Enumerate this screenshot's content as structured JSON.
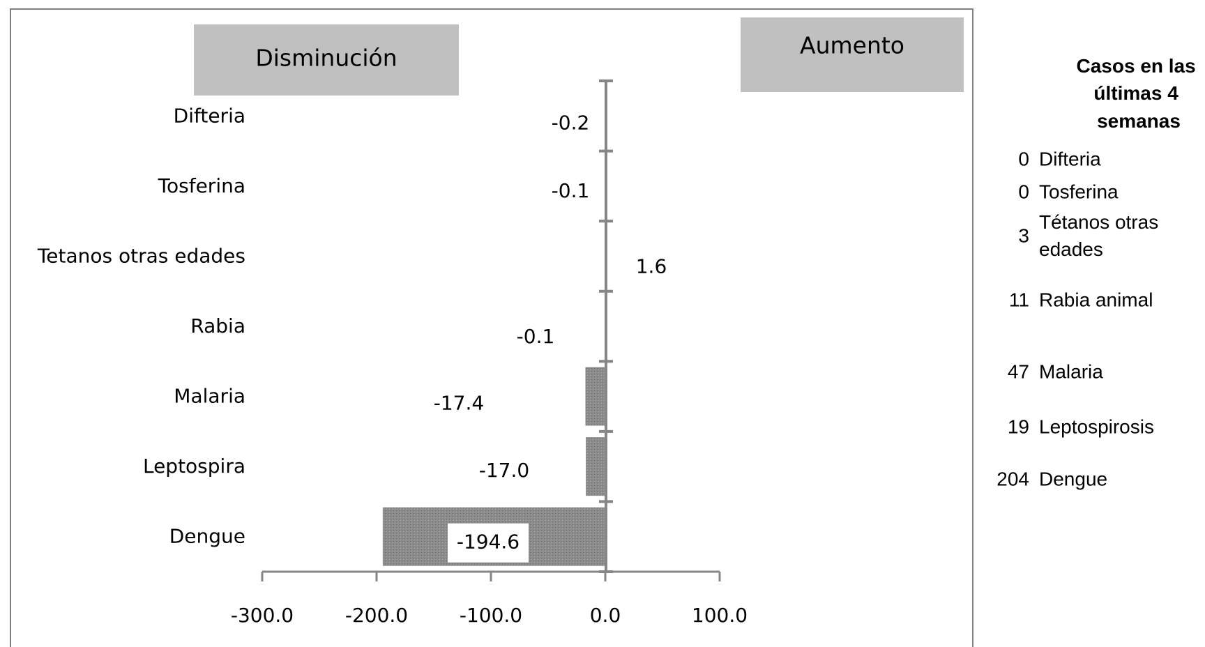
{
  "chart_data": {
    "type": "bar",
    "orientation": "horizontal",
    "categories": [
      "Difteria",
      "Tosferina",
      "Tetanos otras edades",
      "Rabia",
      "Malaria",
      "Leptospira",
      "Dengue"
    ],
    "values": [
      -0.2,
      -0.1,
      1.6,
      -0.1,
      -17.4,
      -17.0,
      -194.6
    ],
    "value_labels": [
      "-0.2",
      "-0.1",
      "1.6",
      "-0.1",
      "-17.4",
      "-17.0",
      "-194.6"
    ],
    "xlim": [
      -300,
      100
    ],
    "x_ticks": [
      "-300.0",
      "-200.0",
      "-100.0",
      "0.0",
      "100.0"
    ],
    "legend_boxes": {
      "left": "Disminución",
      "right": "Aumento"
    },
    "bar_color": "#8c8c8c",
    "grid": false
  },
  "side_panel": {
    "title_lines": [
      "Casos en las",
      "últimas 4",
      "semanas"
    ],
    "rows": [
      {
        "count": "0",
        "name_lines": [
          "Difteria"
        ]
      },
      {
        "count": "0",
        "name_lines": [
          "Tosferina"
        ]
      },
      {
        "count": "3",
        "name_lines": [
          "Tétanos otras",
          "edades"
        ]
      },
      {
        "count": "11",
        "name_lines": [
          "Rabia animal"
        ]
      },
      {
        "count": "47",
        "name_lines": [
          "Malaria"
        ]
      },
      {
        "count": "19",
        "name_lines": [
          "Leptospirosis"
        ]
      },
      {
        "count": "204",
        "name_lines": [
          "Dengue"
        ]
      }
    ]
  }
}
